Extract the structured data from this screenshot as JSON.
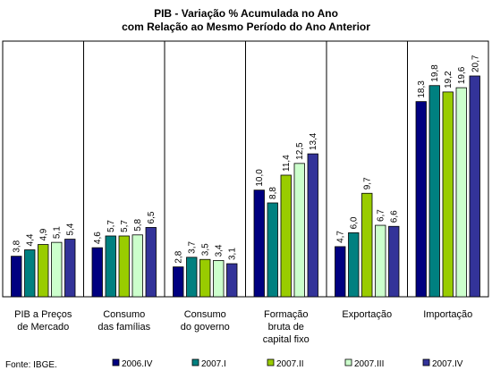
{
  "chart_data": {
    "type": "bar",
    "title_lines": [
      "PIB - Variação % Acumulada no Ano",
      "com Relação ao Mesmo Período do Ano Anterior"
    ],
    "categories": [
      [
        "PIB a Preços",
        "de Mercado"
      ],
      [
        "Consumo",
        "das famílias"
      ],
      [
        "Consumo",
        "do governo"
      ],
      [
        "Formação",
        "bruta de",
        "capital fixo"
      ],
      [
        "Exportação"
      ],
      [
        "Importação"
      ]
    ],
    "series": [
      {
        "name": "2006.IV",
        "color": "#000080",
        "values": [
          3.8,
          4.6,
          2.8,
          10.0,
          4.7,
          18.3
        ],
        "labels": [
          "3,8",
          "4,6",
          "2,8",
          "10,0",
          "4,7",
          "18,3"
        ]
      },
      {
        "name": "2007.I",
        "color": "#008080",
        "values": [
          4.4,
          5.7,
          3.7,
          8.8,
          6.0,
          19.8
        ],
        "labels": [
          "4,4",
          "5,7",
          "3,7",
          "8,8",
          "6,0",
          "19,8"
        ]
      },
      {
        "name": "2007.II",
        "color": "#99CC00",
        "values": [
          4.9,
          5.7,
          3.5,
          11.4,
          9.7,
          19.2
        ],
        "labels": [
          "4,9",
          "5,7",
          "3,5",
          "11,4",
          "9,7",
          "19,2"
        ]
      },
      {
        "name": "2007.III",
        "color": "#CCFFCC",
        "values": [
          5.1,
          5.8,
          3.4,
          12.5,
          6.7,
          19.6
        ],
        "labels": [
          "5,1",
          "5,8",
          "3,4",
          "12,5",
          "6,7",
          "19,6"
        ]
      },
      {
        "name": "2007.IV",
        "color": "#333399",
        "values": [
          5.4,
          6.5,
          3.1,
          13.4,
          6.6,
          20.7
        ],
        "labels": [
          "5,4",
          "6,5",
          "3,1",
          "13,4",
          "6,6",
          "20,7"
        ]
      }
    ],
    "ylim": [
      0,
      25
    ],
    "grid": false,
    "legend_position": "bottom"
  },
  "source": "Fonte: IBGE."
}
